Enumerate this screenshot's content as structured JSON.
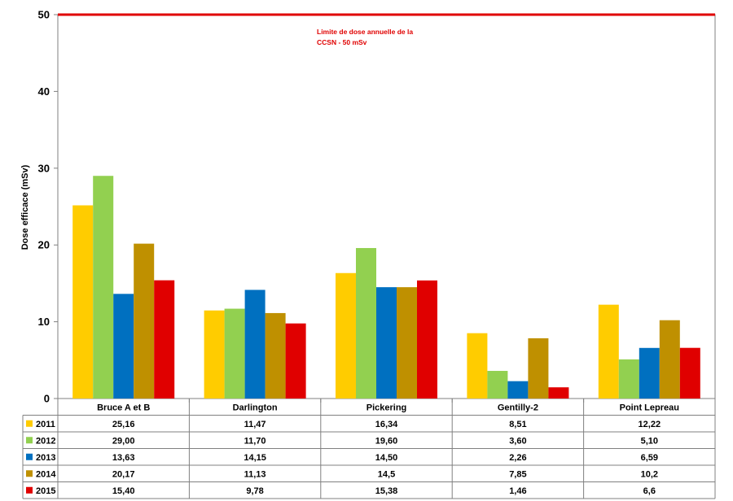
{
  "chart_data": {
    "type": "bar",
    "ylabel": "Dose efficace (mSv)",
    "ylim": [
      0,
      50
    ],
    "yticks": [
      "0",
      "10",
      "20",
      "30",
      "40",
      "50"
    ],
    "grid": false,
    "categories": [
      "Bruce A et B",
      "Darlington",
      "Pickering",
      "Gentilly-2",
      "Point Lepreau"
    ],
    "series": [
      {
        "name": "2011",
        "color": "#ffcc00",
        "values": [
          25.16,
          11.47,
          16.34,
          8.51,
          12.22
        ],
        "labels": [
          "25,16",
          "11,47",
          "16,34",
          "8,51",
          "12,22"
        ]
      },
      {
        "name": "2012",
        "color": "#92d050",
        "values": [
          29.0,
          11.7,
          19.6,
          3.6,
          5.1
        ],
        "labels": [
          "29,00",
          "11,70",
          "19,60",
          "3,60",
          "5,10"
        ]
      },
      {
        "name": "2013",
        "color": "#0070c0",
        "values": [
          13.63,
          14.15,
          14.5,
          2.26,
          6.59
        ],
        "labels": [
          "13,63",
          "14,15",
          "14,50",
          "2,26",
          "6,59"
        ]
      },
      {
        "name": "2014",
        "color": "#bf9000",
        "values": [
          20.17,
          11.13,
          14.5,
          7.85,
          10.2
        ],
        "labels": [
          "20,17",
          "11,13",
          "14,5",
          "7,85",
          "10,2"
        ]
      },
      {
        "name": "2015",
        "color": "#e00000",
        "values": [
          15.4,
          9.78,
          15.38,
          1.46,
          6.6
        ],
        "labels": [
          "15,40",
          "9,78",
          "15,38",
          "1,46",
          "6,6"
        ]
      }
    ],
    "reference_line": {
      "value": 50,
      "color": "#e00000",
      "label_lines": [
        "Limite de dose annuelle de la",
        "CCSN - 50 mSv"
      ]
    },
    "legend": "data-table"
  }
}
